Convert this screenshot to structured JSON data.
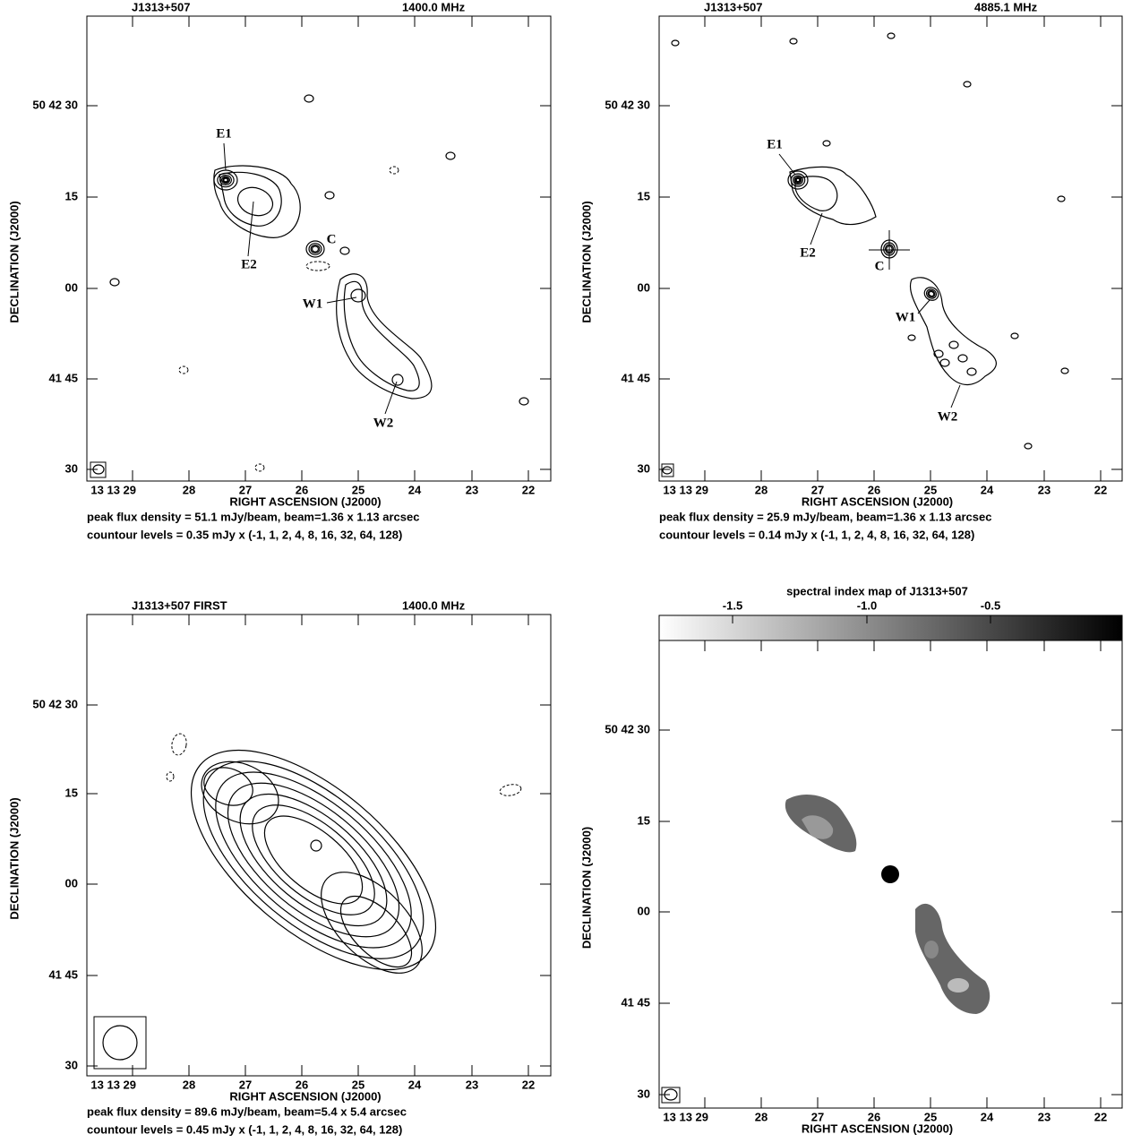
{
  "panels": [
    {
      "source": "J1313+507",
      "freq": "1400.0 MHz",
      "xticks": [
        "13 13 29",
        "28",
        "27",
        "26",
        "25",
        "24",
        "23",
        "22"
      ],
      "yticks": [
        "50 42 30",
        "15",
        "00",
        "41 45",
        "30"
      ],
      "xlabel": "RIGHT ASCENSION (J2000)",
      "ylabel": "DECLINATION (J2000)",
      "labels": [
        "E1",
        "E2",
        "C",
        "W1",
        "W2"
      ],
      "caption": [
        "peak flux density = 51.1 mJy/beam, beam=1.36 x 1.13 arcsec",
        "countour levels = 0.35 mJy x (-1, 1, 2, 4, 8, 16, 32, 64, 128)"
      ]
    },
    {
      "source": "J1313+507",
      "freq": "4885.1 MHz",
      "xticks": [
        "13 13 29",
        "28",
        "27",
        "26",
        "25",
        "24",
        "23",
        "22"
      ],
      "yticks": [
        "50 42 30",
        "15",
        "00",
        "41 45",
        "30"
      ],
      "xlabel": "RIGHT ASCENSION (J2000)",
      "ylabel": "DECLINATION (J2000)",
      "labels": [
        "E1",
        "E2",
        "C",
        "W1",
        "W2"
      ],
      "caption": [
        "peak flux density = 25.9 mJy/beam, beam=1.36 x 1.13 arcsec",
        "countour levels = 0.14 mJy x (-1, 1, 2, 4, 8, 16, 32, 64, 128)"
      ]
    },
    {
      "source": "J1313+507   FIRST",
      "freq": "1400.0 MHz",
      "xticks": [
        "13 13 29",
        "28",
        "27",
        "26",
        "25",
        "24",
        "23",
        "22"
      ],
      "yticks": [
        "50 42 30",
        "15",
        "00",
        "41 45",
        "30"
      ],
      "xlabel": "RIGHT ASCENSION (J2000)",
      "ylabel": "DECLINATION (J2000)",
      "caption": [
        "peak flux density = 89.6 mJy/beam, beam=5.4 x 5.4 arcsec",
        "countour levels = 0.45 mJy x (-1, 1, 2, 4, 8, 16, 32, 64, 128)"
      ]
    },
    {
      "title": "spectral index map of J1313+507",
      "colorbar_ticks": [
        "-1.5",
        "-1.0",
        "-0.5"
      ],
      "xticks": [
        "13 13 29",
        "28",
        "27",
        "26",
        "25",
        "24",
        "23",
        "22"
      ],
      "yticks": [
        "50 42 30",
        "15",
        "00",
        "41 45",
        "30"
      ],
      "xlabel": "RIGHT ASCENSION (J2000)",
      "ylabel": "DECLINATION (J2000)"
    }
  ]
}
